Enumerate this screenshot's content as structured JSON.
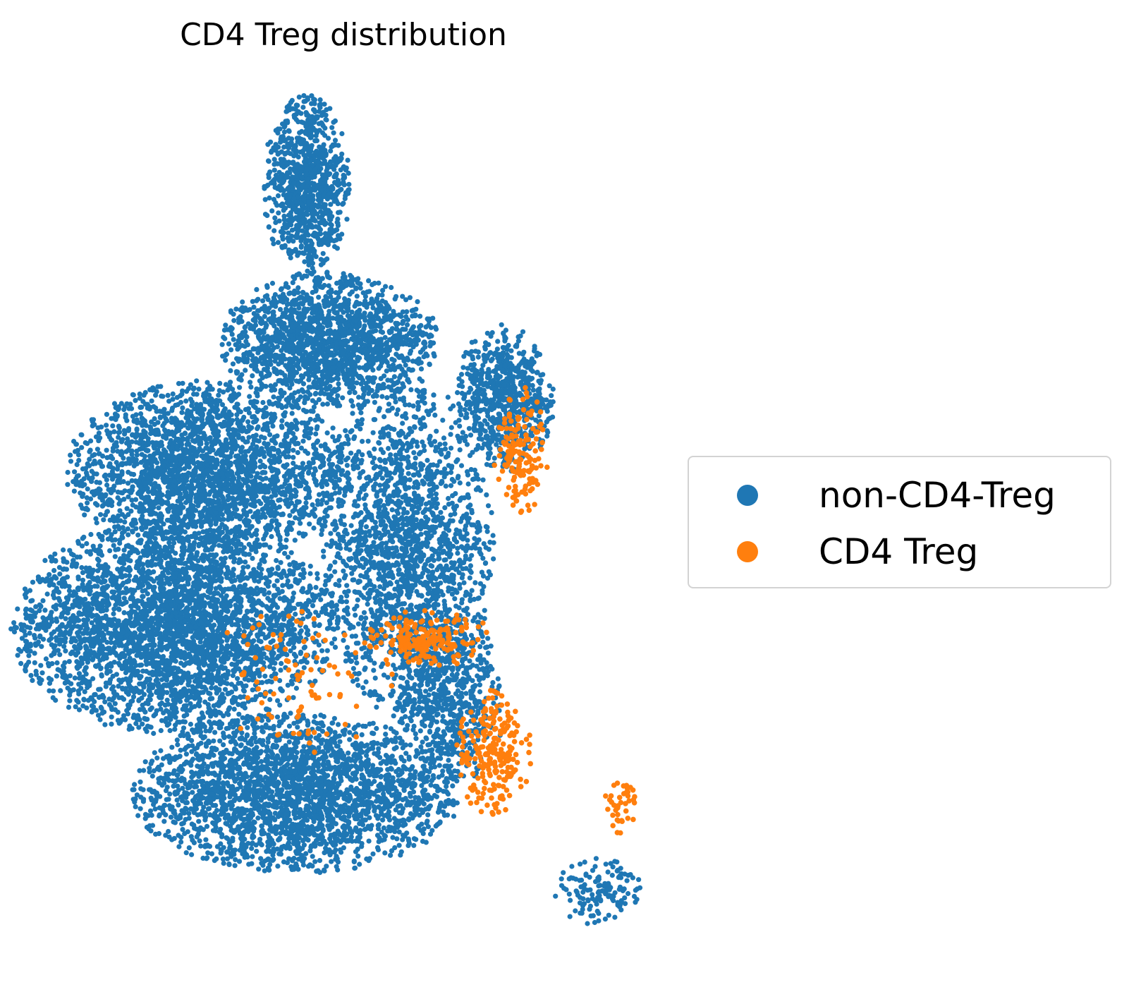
{
  "chart_data": {
    "type": "scatter",
    "title": "CD4 Treg distribution",
    "xlabel": "",
    "ylabel": "",
    "axes_visible": false,
    "grid": false,
    "legend_placement": "right-center",
    "series": [
      {
        "name": "non-CD4-Treg",
        "color": "#1f77b4",
        "clusters": [
          {
            "cx": 4.8,
            "cy": 11.5,
            "rx": 0.8,
            "ry": 1.6,
            "n": 900
          },
          {
            "cx": 5.2,
            "cy": 8.8,
            "rx": 2.0,
            "ry": 1.2,
            "n": 1700
          },
          {
            "cx": 3.0,
            "cy": 6.5,
            "rx": 2.6,
            "ry": 1.6,
            "n": 2500
          },
          {
            "cx": 2.4,
            "cy": 3.8,
            "rx": 3.0,
            "ry": 1.9,
            "n": 3500
          },
          {
            "cx": 4.6,
            "cy": 0.9,
            "rx": 3.0,
            "ry": 1.4,
            "n": 2600
          },
          {
            "cx": 6.6,
            "cy": 5.2,
            "rx": 1.6,
            "ry": 3.0,
            "n": 1900
          },
          {
            "cx": 8.4,
            "cy": 7.8,
            "rx": 0.9,
            "ry": 1.3,
            "n": 700
          },
          {
            "cx": 7.4,
            "cy": 2.5,
            "rx": 1.0,
            "ry": 1.6,
            "n": 600
          },
          {
            "cx": 10.1,
            "cy": -0.8,
            "rx": 0.8,
            "ry": 0.6,
            "n": 140
          }
        ]
      },
      {
        "name": "CD4 Treg",
        "color": "#ff7f0e",
        "clusters": [
          {
            "cx": 8.7,
            "cy": 6.8,
            "rx": 0.5,
            "ry": 1.2,
            "n": 150
          },
          {
            "cx": 7.0,
            "cy": 3.6,
            "rx": 1.2,
            "ry": 0.5,
            "n": 180
          },
          {
            "cx": 8.2,
            "cy": 1.6,
            "rx": 0.7,
            "ry": 1.1,
            "n": 230
          },
          {
            "cx": 4.8,
            "cy": 3.0,
            "rx": 1.7,
            "ry": 1.4,
            "n": 90
          },
          {
            "cx": 10.5,
            "cy": 0.7,
            "rx": 0.35,
            "ry": 0.5,
            "n": 40
          }
        ]
      }
    ],
    "xlim": [
      -0.4,
      11.4
    ],
    "ylim": [
      -2.0,
      14.0
    ]
  }
}
